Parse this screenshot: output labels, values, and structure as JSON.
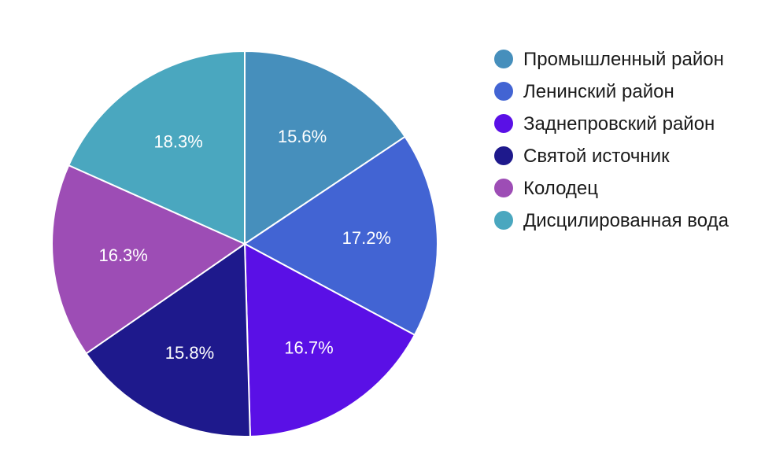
{
  "chart_data": {
    "type": "pie",
    "title": "",
    "legend_position": "right",
    "slices": [
      {
        "name": "Промышленный район",
        "value": 15.6,
        "label": "15.6%",
        "color": "#468fbc"
      },
      {
        "name": "Ленинский район",
        "value": 17.2,
        "label": "17.2%",
        "color": "#4264d3"
      },
      {
        "name": "Заднепровский район",
        "value": 16.7,
        "label": "16.7%",
        "color": "#5a10e6"
      },
      {
        "name": "Святой источник",
        "value": 15.8,
        "label": "15.8%",
        "color": "#1e198c"
      },
      {
        "name": "Колодец",
        "value": 16.3,
        "label": "16.3%",
        "color": "#9d4db5"
      },
      {
        "name": "Дисцилированная вода",
        "value": 18.3,
        "label": "18.3%",
        "color": "#4aa7bf"
      }
    ]
  }
}
